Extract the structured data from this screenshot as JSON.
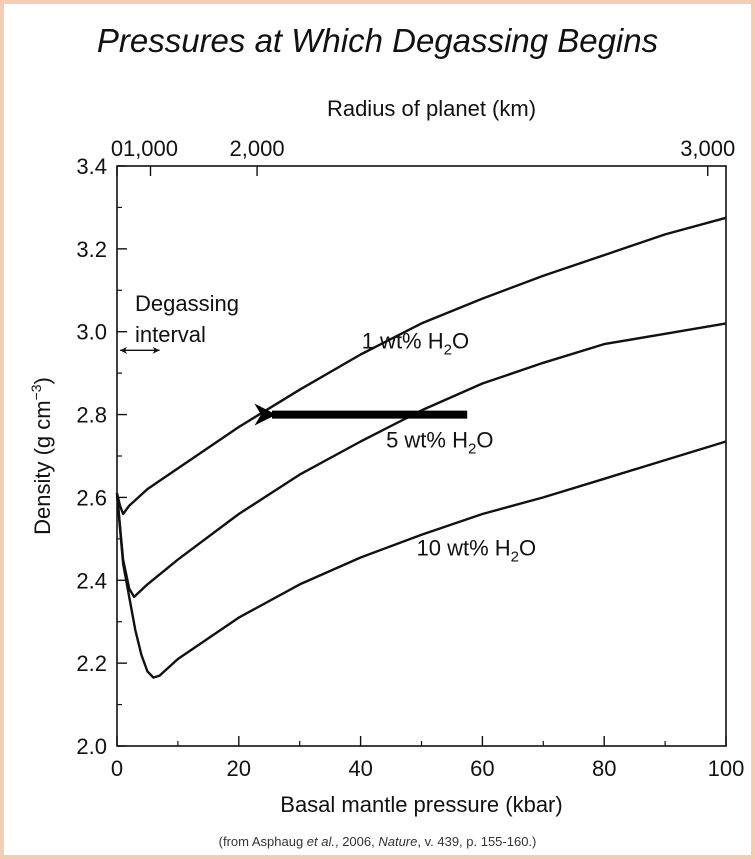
{
  "chart_data": {
    "type": "line",
    "title": "Pressures at Which Degassing Begins",
    "xlabel": "Basal mantle pressure (kbar)",
    "ylabel": "Density (g cm",
    "ylabel_sup": "−3",
    "ylabel_close": ")",
    "xlim": [
      0,
      100
    ],
    "ylim": [
      2.0,
      3.4
    ],
    "x_ticks": [
      0,
      20,
      40,
      60,
      80,
      100
    ],
    "y_ticks": [
      2.0,
      2.2,
      2.4,
      2.6,
      2.8,
      3.0,
      3.2,
      3.4
    ],
    "y_tick_labels": [
      "2.0",
      "2.2",
      "2.4",
      "2.6",
      "2.8",
      "3.0",
      "3.2",
      "3.4"
    ],
    "top_axis": {
      "label": "Radius of planet (km)",
      "ticks": [
        {
          "label": "0",
          "pressure": 0
        },
        {
          "label": "1,000",
          "pressure": 5.5
        },
        {
          "label": "2,000",
          "pressure": 23
        },
        {
          "label": "3,000",
          "pressure": 97
        }
      ]
    },
    "series": [
      {
        "label_main": "1 wt% H",
        "label_sub": "2",
        "label_tail": "O",
        "label_pos": [
          49,
          2.96
        ],
        "points": [
          [
            0,
            2.61
          ],
          [
            0.5,
            2.58
          ],
          [
            1,
            2.56
          ],
          [
            2,
            2.58
          ],
          [
            5,
            2.62
          ],
          [
            10,
            2.67
          ],
          [
            20,
            2.77
          ],
          [
            30,
            2.86
          ],
          [
            40,
            2.945
          ],
          [
            50,
            3.02
          ],
          [
            60,
            3.08
          ],
          [
            70,
            3.135
          ],
          [
            80,
            3.185
          ],
          [
            90,
            3.235
          ],
          [
            100,
            3.275
          ]
        ]
      },
      {
        "label_main": "5 wt% H",
        "label_sub": "2",
        "label_tail": "O",
        "label_pos": [
          53,
          2.72
        ],
        "points": [
          [
            0,
            2.61
          ],
          [
            0.5,
            2.53
          ],
          [
            1,
            2.45
          ],
          [
            2,
            2.38
          ],
          [
            2.8,
            2.36
          ],
          [
            5,
            2.39
          ],
          [
            10,
            2.45
          ],
          [
            20,
            2.56
          ],
          [
            30,
            2.655
          ],
          [
            40,
            2.735
          ],
          [
            50,
            2.81
          ],
          [
            60,
            2.875
          ],
          [
            70,
            2.925
          ],
          [
            80,
            2.97
          ],
          [
            90,
            2.995
          ],
          [
            100,
            3.02
          ]
        ]
      },
      {
        "label_main": "10 wt% H",
        "label_sub": "2",
        "label_tail": "O",
        "label_pos": [
          59,
          2.46
        ],
        "points": [
          [
            0,
            2.61
          ],
          [
            1,
            2.44
          ],
          [
            2,
            2.36
          ],
          [
            3,
            2.28
          ],
          [
            4,
            2.22
          ],
          [
            5,
            2.18
          ],
          [
            6,
            2.165
          ],
          [
            7,
            2.17
          ],
          [
            10,
            2.21
          ],
          [
            20,
            2.31
          ],
          [
            30,
            2.39
          ],
          [
            40,
            2.455
          ],
          [
            50,
            2.51
          ],
          [
            60,
            2.56
          ],
          [
            70,
            2.6
          ],
          [
            80,
            2.645
          ],
          [
            90,
            2.69
          ],
          [
            100,
            2.735
          ]
        ]
      }
    ],
    "annotations": {
      "degassing_label": [
        "Degassing",
        "interval"
      ],
      "degassing_arrow": {
        "x_from": 0.5,
        "x_to": 7,
        "y": 2.955
      },
      "arrow": {
        "x_from": 57.5,
        "x_to": 22.5,
        "y": 2.8
      }
    },
    "grid": false,
    "legend": "none"
  },
  "source": {
    "prefix": "(from Asphaug ",
    "et_al": "et al.",
    "middle": ", 2006, ",
    "journal": "Nature",
    "suffix": ", v. 439, p. 155-160.)"
  }
}
